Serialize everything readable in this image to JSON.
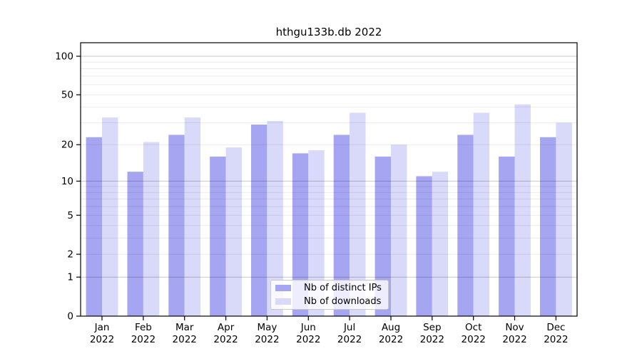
{
  "chart_data": {
    "type": "bar",
    "title": "hthgu133b.db 2022",
    "categories": [
      "Jan",
      "Feb",
      "Mar",
      "Apr",
      "May",
      "Jun",
      "Jul",
      "Aug",
      "Sep",
      "Oct",
      "Nov",
      "Dec"
    ],
    "x_tick_second_line": "2022",
    "series": [
      {
        "name": "Nb of distinct IPs",
        "color": "#a5a5f2",
        "values": [
          23,
          12,
          24,
          16,
          29,
          17,
          24,
          16,
          11,
          24,
          16,
          23
        ]
      },
      {
        "name": "Nb of downloads",
        "color": "#d9d9f9",
        "values": [
          33,
          21,
          33,
          19,
          31,
          18,
          36,
          20,
          12,
          36,
          42,
          30
        ]
      }
    ],
    "y_axis": {
      "scale": "log10(1+x)",
      "tick_labels": [
        0,
        1,
        2,
        5,
        10,
        20,
        50,
        100
      ],
      "major_gridlines": [
        1,
        10,
        100
      ],
      "minor_gridlines": [
        2,
        3,
        4,
        5,
        6,
        7,
        8,
        9,
        20,
        30,
        40,
        50,
        60,
        70,
        80,
        90
      ],
      "range_top_value": 126
    },
    "legend_position": "bottom-center",
    "grid": "on",
    "colors": {
      "major_grid": "rgba(0,0,0,0.22)",
      "minor_grid": "rgba(0,0,0,0.08)",
      "axis": "#000000"
    }
  }
}
